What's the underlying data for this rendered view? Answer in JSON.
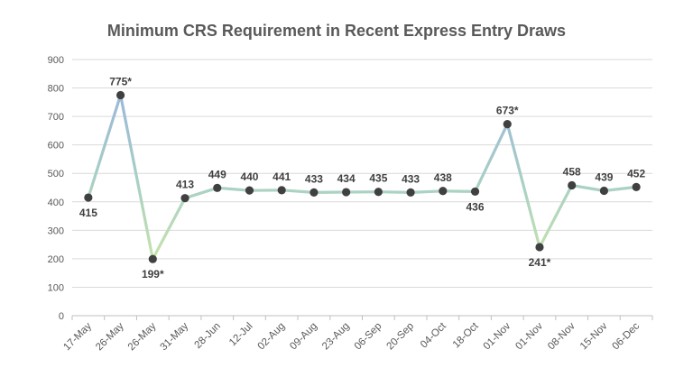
{
  "chart_data": {
    "type": "line",
    "title": "Minimum CRS Requirement in Recent Express Entry Draws",
    "xlabel": "",
    "ylabel": "",
    "ylim": [
      0,
      900
    ],
    "yticks": [
      0,
      100,
      200,
      300,
      400,
      500,
      600,
      700,
      800,
      900
    ],
    "grid": true,
    "legend": "none",
    "categories": [
      "17-May",
      "26-May",
      "26-May",
      "31-May",
      "28-Jun",
      "12-Jul",
      "02-Aug",
      "09-Aug",
      "23-Aug",
      "06-Sep",
      "20-Sep",
      "04-Oct",
      "18-Oct",
      "01-Nov",
      "01-Nov",
      "08-Nov",
      "15-Nov",
      "06-Dec"
    ],
    "series": [
      {
        "values": [
          415,
          775,
          199,
          413,
          449,
          440,
          441,
          433,
          434,
          435,
          433,
          438,
          436,
          673,
          241,
          458,
          439,
          452
        ],
        "data_labels": [
          "415",
          "775*",
          "199*",
          "413",
          "449",
          "440",
          "441",
          "433",
          "434",
          "435",
          "433",
          "438",
          "436",
          "673*",
          "241*",
          "458",
          "439",
          "452"
        ],
        "label_position": [
          "below",
          "above",
          "below",
          "above",
          "above",
          "above",
          "above",
          "above",
          "above",
          "above",
          "above",
          "above",
          "below",
          "above",
          "below",
          "above",
          "above",
          "above"
        ]
      }
    ],
    "colors": {
      "line_high": "#9ab7d9",
      "line_mid": "#a8cfc6",
      "line_low": "#c9e6a8",
      "marker": "#404040",
      "grid": "#d9d9d9",
      "text": "#595959"
    }
  }
}
